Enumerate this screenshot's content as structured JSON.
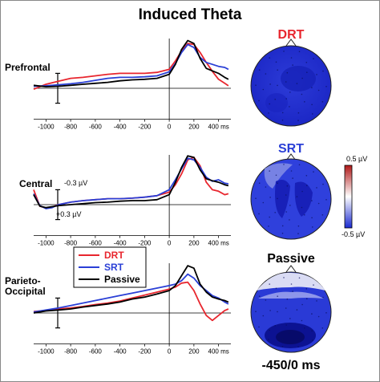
{
  "title": "Induced Theta",
  "colors": {
    "DRT": "#e8262e",
    "SRT": "#2a3fd6",
    "Passive": "#000000"
  },
  "legend": [
    {
      "name": "DRT",
      "color": "#e8262e"
    },
    {
      "name": "SRT",
      "color": "#2a3fd6"
    },
    {
      "name": "Passive",
      "color": "#000000"
    }
  ],
  "scale_bar": {
    "top": "-0.3 µV",
    "bottom": "+0.3 µV"
  },
  "colorbar": {
    "max": "0.5 µV",
    "min": "-0.5 µV",
    "colors": [
      "#b01818",
      "#ffffff",
      "#1a2ad0"
    ]
  },
  "time_window": "-450/0 ms",
  "maps": [
    {
      "label": "DRT",
      "color": "#e8262e"
    },
    {
      "label": "SRT",
      "color": "#2a3fd6"
    },
    {
      "label": "Passive",
      "color": "#000000"
    }
  ],
  "chart_data": [
    {
      "type": "line",
      "row_label": [
        "Prefrontal"
      ],
      "xlim": [
        -1100,
        500
      ],
      "x_ticks": [
        -1000,
        -800,
        -600,
        -400,
        -200,
        0,
        200,
        400
      ],
      "x_tick_labels": [
        "-1000",
        "-800",
        "-600",
        "-400",
        "-200",
        "0",
        "200",
        "400 ms"
      ],
      "ylim": [
        -0.3,
        1.0
      ],
      "series": [
        {
          "name": "DRT",
          "color": "#e8262e",
          "points": [
            [
              -1100,
              -0.02
            ],
            [
              -1000,
              0.08
            ],
            [
              -900,
              0.14
            ],
            [
              -800,
              0.2
            ],
            [
              -700,
              0.22
            ],
            [
              -600,
              0.25
            ],
            [
              -500,
              0.28
            ],
            [
              -400,
              0.3
            ],
            [
              -300,
              0.3
            ],
            [
              -200,
              0.3
            ],
            [
              -100,
              0.32
            ],
            [
              0,
              0.38
            ],
            [
              50,
              0.55
            ],
            [
              100,
              0.75
            ],
            [
              150,
              0.9
            ],
            [
              200,
              0.88
            ],
            [
              250,
              0.72
            ],
            [
              300,
              0.52
            ],
            [
              350,
              0.34
            ],
            [
              400,
              0.18
            ],
            [
              450,
              0.1
            ],
            [
              480,
              0.05
            ]
          ]
        },
        {
          "name": "SRT",
          "color": "#2a3fd6",
          "points": [
            [
              -1100,
              0.04
            ],
            [
              -1000,
              0.05
            ],
            [
              -900,
              0.07
            ],
            [
              -800,
              0.09
            ],
            [
              -700,
              0.12
            ],
            [
              -600,
              0.16
            ],
            [
              -500,
              0.2
            ],
            [
              -400,
              0.22
            ],
            [
              -300,
              0.22
            ],
            [
              -200,
              0.23
            ],
            [
              -100,
              0.25
            ],
            [
              0,
              0.33
            ],
            [
              50,
              0.5
            ],
            [
              100,
              0.72
            ],
            [
              150,
              0.88
            ],
            [
              200,
              0.82
            ],
            [
              250,
              0.62
            ],
            [
              300,
              0.52
            ],
            [
              350,
              0.48
            ],
            [
              400,
              0.44
            ],
            [
              450,
              0.42
            ],
            [
              480,
              0.38
            ]
          ]
        },
        {
          "name": "Passive",
          "color": "#000000",
          "points": [
            [
              -1100,
              0.06
            ],
            [
              -1000,
              0.03
            ],
            [
              -900,
              0.04
            ],
            [
              -800,
              0.06
            ],
            [
              -700,
              0.08
            ],
            [
              -600,
              0.1
            ],
            [
              -500,
              0.12
            ],
            [
              -400,
              0.15
            ],
            [
              -300,
              0.17
            ],
            [
              -200,
              0.18
            ],
            [
              -100,
              0.2
            ],
            [
              0,
              0.28
            ],
            [
              50,
              0.48
            ],
            [
              100,
              0.78
            ],
            [
              150,
              0.96
            ],
            [
              200,
              0.9
            ],
            [
              250,
              0.6
            ],
            [
              300,
              0.4
            ],
            [
              350,
              0.35
            ],
            [
              400,
              0.3
            ],
            [
              450,
              0.22
            ],
            [
              480,
              0.18
            ]
          ]
        }
      ]
    },
    {
      "type": "line",
      "row_label": [
        "Central"
      ],
      "xlim": [
        -1100,
        500
      ],
      "x_ticks": [
        -1000,
        -800,
        -600,
        -400,
        -200,
        0,
        200,
        400
      ],
      "x_tick_labels": [
        "-1000",
        "-800",
        "-600",
        "-400",
        "-200",
        "0",
        "200",
        "400 ms"
      ],
      "ylim": [
        -0.3,
        1.0
      ],
      "series": [
        {
          "name": "DRT",
          "color": "#e8262e",
          "points": [
            [
              -1100,
              0.3
            ],
            [
              -1050,
              -0.03
            ],
            [
              -1000,
              -0.07
            ],
            [
              -950,
              -0.05
            ],
            [
              -900,
              0.0
            ],
            [
              -800,
              0.05
            ],
            [
              -700,
              0.08
            ],
            [
              -600,
              0.1
            ],
            [
              -500,
              0.12
            ],
            [
              -400,
              0.12
            ],
            [
              -300,
              0.13
            ],
            [
              -200,
              0.15
            ],
            [
              -100,
              0.18
            ],
            [
              0,
              0.25
            ],
            [
              50,
              0.4
            ],
            [
              100,
              0.62
            ],
            [
              150,
              0.9
            ],
            [
              200,
              0.95
            ],
            [
              250,
              0.78
            ],
            [
              300,
              0.45
            ],
            [
              350,
              0.3
            ],
            [
              400,
              0.27
            ],
            [
              450,
              0.2
            ],
            [
              480,
              0.22
            ]
          ]
        },
        {
          "name": "SRT",
          "color": "#2a3fd6",
          "points": [
            [
              -1100,
              0.22
            ],
            [
              -1050,
              -0.02
            ],
            [
              -1000,
              -0.08
            ],
            [
              -950,
              -0.06
            ],
            [
              -900,
              0.0
            ],
            [
              -800,
              0.05
            ],
            [
              -700,
              0.08
            ],
            [
              -600,
              0.1
            ],
            [
              -500,
              0.12
            ],
            [
              -400,
              0.12
            ],
            [
              -300,
              0.13
            ],
            [
              -200,
              0.15
            ],
            [
              -100,
              0.18
            ],
            [
              0,
              0.3
            ],
            [
              50,
              0.5
            ],
            [
              100,
              0.72
            ],
            [
              150,
              0.93
            ],
            [
              200,
              0.9
            ],
            [
              250,
              0.75
            ],
            [
              300,
              0.55
            ],
            [
              350,
              0.47
            ],
            [
              400,
              0.5
            ],
            [
              450,
              0.43
            ],
            [
              480,
              0.42
            ]
          ]
        },
        {
          "name": "Passive",
          "color": "#000000",
          "points": [
            [
              -1100,
              0.2
            ],
            [
              -1050,
              -0.03
            ],
            [
              -1000,
              -0.06
            ],
            [
              -950,
              -0.04
            ],
            [
              -900,
              -0.02
            ],
            [
              -800,
              0.0
            ],
            [
              -700,
              0.02
            ],
            [
              -600,
              0.04
            ],
            [
              -500,
              0.05
            ],
            [
              -400,
              0.07
            ],
            [
              -300,
              0.08
            ],
            [
              -200,
              0.08
            ],
            [
              -100,
              0.1
            ],
            [
              0,
              0.2
            ],
            [
              50,
              0.45
            ],
            [
              100,
              0.75
            ],
            [
              150,
              0.98
            ],
            [
              200,
              0.95
            ],
            [
              250,
              0.7
            ],
            [
              300,
              0.52
            ],
            [
              350,
              0.48
            ],
            [
              400,
              0.45
            ],
            [
              450,
              0.4
            ],
            [
              480,
              0.38
            ]
          ]
        }
      ]
    },
    {
      "type": "line",
      "row_label": [
        "Parieto-",
        "Occipital"
      ],
      "xlim": [
        -1100,
        500
      ],
      "x_ticks": [
        -1000,
        -800,
        -600,
        -400,
        -200,
        0,
        200,
        400
      ],
      "x_tick_labels": [
        "-1000",
        "-800",
        "-600",
        "-400",
        "-200",
        "0",
        "200",
        "400 ms"
      ],
      "ylim": [
        -0.3,
        1.0
      ],
      "series": [
        {
          "name": "DRT",
          "color": "#e8262e",
          "points": [
            [
              -1100,
              0.03
            ],
            [
              -1000,
              0.05
            ],
            [
              -900,
              0.08
            ],
            [
              -800,
              0.1
            ],
            [
              -700,
              0.13
            ],
            [
              -600,
              0.17
            ],
            [
              -500,
              0.2
            ],
            [
              -400,
              0.24
            ],
            [
              -300,
              0.3
            ],
            [
              -200,
              0.36
            ],
            [
              -100,
              0.42
            ],
            [
              -50,
              0.45
            ],
            [
              0,
              0.48
            ],
            [
              50,
              0.52
            ],
            [
              100,
              0.6
            ],
            [
              150,
              0.62
            ],
            [
              200,
              0.45
            ],
            [
              250,
              0.18
            ],
            [
              300,
              -0.05
            ],
            [
              350,
              -0.15
            ],
            [
              400,
              -0.05
            ],
            [
              450,
              0.05
            ],
            [
              480,
              0.08
            ]
          ]
        },
        {
          "name": "SRT",
          "color": "#2a3fd6",
          "points": [
            [
              -1100,
              0.02
            ],
            [
              -1000,
              0.06
            ],
            [
              -900,
              0.1
            ],
            [
              -800,
              0.15
            ],
            [
              -700,
              0.2
            ],
            [
              -600,
              0.25
            ],
            [
              -500,
              0.3
            ],
            [
              -400,
              0.35
            ],
            [
              -300,
              0.4
            ],
            [
              -200,
              0.45
            ],
            [
              -100,
              0.5
            ],
            [
              0,
              0.55
            ],
            [
              50,
              0.58
            ],
            [
              100,
              0.65
            ],
            [
              150,
              0.78
            ],
            [
              200,
              0.7
            ],
            [
              250,
              0.55
            ],
            [
              300,
              0.45
            ],
            [
              350,
              0.35
            ],
            [
              400,
              0.3
            ],
            [
              450,
              0.22
            ],
            [
              480,
              0.18
            ]
          ]
        },
        {
          "name": "Passive",
          "color": "#000000",
          "points": [
            [
              -1100,
              0.0
            ],
            [
              -1000,
              0.04
            ],
            [
              -900,
              0.06
            ],
            [
              -800,
              0.08
            ],
            [
              -700,
              0.12
            ],
            [
              -600,
              0.15
            ],
            [
              -500,
              0.18
            ],
            [
              -400,
              0.22
            ],
            [
              -300,
              0.28
            ],
            [
              -200,
              0.32
            ],
            [
              -100,
              0.38
            ],
            [
              0,
              0.45
            ],
            [
              50,
              0.55
            ],
            [
              100,
              0.75
            ],
            [
              150,
              0.95
            ],
            [
              200,
              0.9
            ],
            [
              250,
              0.58
            ],
            [
              300,
              0.42
            ],
            [
              350,
              0.32
            ],
            [
              400,
              0.28
            ],
            [
              450,
              0.25
            ],
            [
              480,
              0.22
            ]
          ]
        }
      ]
    }
  ]
}
